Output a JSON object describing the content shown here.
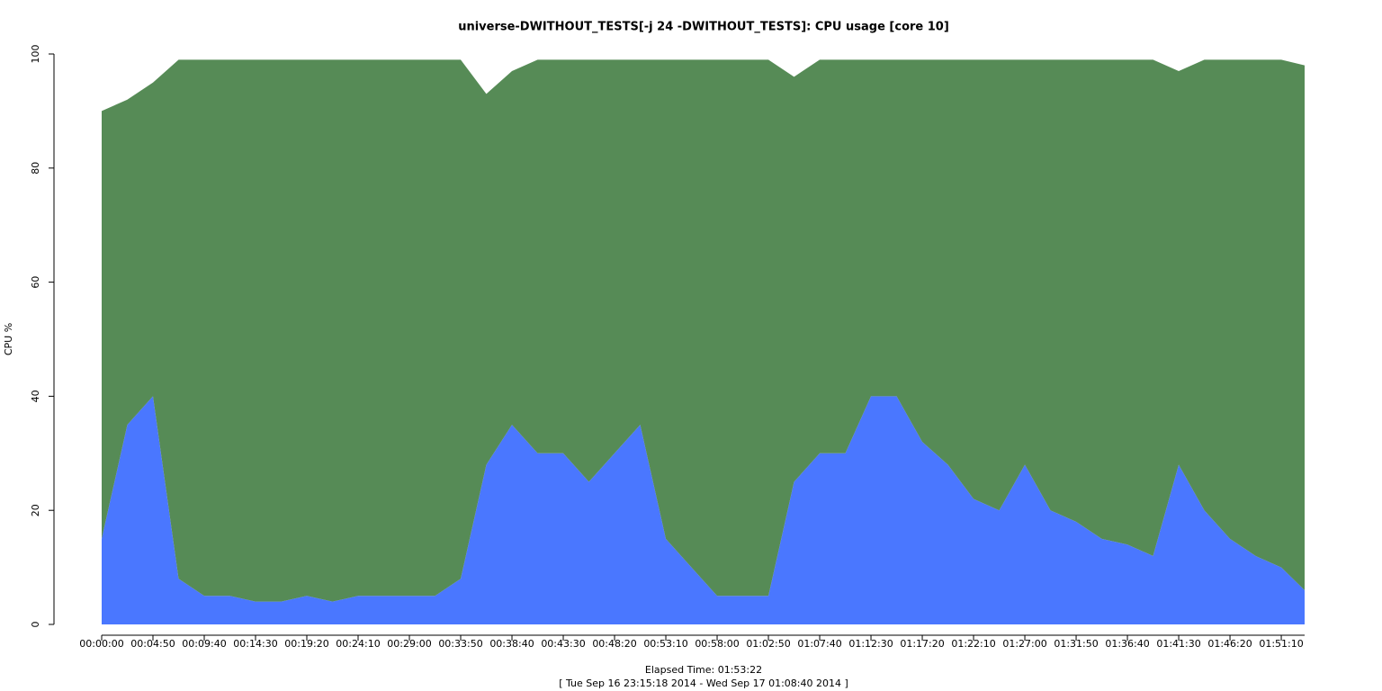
{
  "chart_data": {
    "type": "stacked-area",
    "title": "universe-DWITHOUT_TESTS[-j 24  -DWITHOUT_TESTS]: CPU usage [core 10]",
    "y_label": "CPU %",
    "x_label": "Elapsed Time: 01:53:22",
    "subtitle": "[ Tue Sep 16 23:15:18 2014 - Wed Sep 17 01:08:40 2014 ]",
    "x": [
      0,
      145,
      290,
      435,
      580,
      725,
      870,
      1015,
      1160,
      1305,
      1450,
      1595,
      1740,
      1885,
      2030,
      2175,
      2320,
      2465,
      2610,
      2755,
      2900,
      3045,
      3190,
      3335,
      3480,
      3625,
      3770,
      3915,
      4060,
      4205,
      4350,
      4495,
      4640,
      4785,
      4930,
      5075,
      5220,
      5365,
      5510,
      5655,
      5800,
      5945,
      6090,
      6235,
      6380,
      6525,
      6670,
      6802
    ],
    "series": [
      {
        "color": "#4a77ff",
        "values": [
          15,
          35,
          40,
          8,
          5,
          5,
          4,
          4,
          5,
          4,
          5,
          5,
          5,
          5,
          8,
          28,
          35,
          30,
          30,
          25,
          30,
          35,
          15,
          10,
          5,
          5,
          5,
          25,
          30,
          30,
          40,
          40,
          32,
          28,
          22,
          20,
          28,
          20,
          18,
          15,
          14,
          12,
          28,
          20,
          15,
          12,
          10,
          6
        ]
      },
      {
        "color": "#568b56",
        "values": [
          75,
          57,
          55,
          91,
          94,
          94,
          95,
          95,
          94,
          95,
          94,
          94,
          94,
          94,
          91,
          65,
          62,
          69,
          69,
          74,
          69,
          64,
          84,
          89,
          94,
          94,
          94,
          71,
          69,
          69,
          59,
          59,
          67,
          71,
          77,
          79,
          71,
          79,
          81,
          84,
          85,
          87,
          69,
          79,
          84,
          87,
          89,
          92
        ]
      }
    ],
    "xlim": [
      0,
      6802
    ],
    "ylim": [
      0,
      100
    ],
    "yticks": [
      0,
      20,
      40,
      60,
      80,
      100
    ],
    "xticks": [
      {
        "value": 0,
        "label": "00:00:00"
      },
      {
        "value": 290,
        "label": "00:04:50"
      },
      {
        "value": 580,
        "label": "00:09:40"
      },
      {
        "value": 870,
        "label": "00:14:30"
      },
      {
        "value": 1160,
        "label": "00:19:20"
      },
      {
        "value": 1450,
        "label": "00:24:10"
      },
      {
        "value": 1740,
        "label": "00:29:00"
      },
      {
        "value": 2030,
        "label": "00:33:50"
      },
      {
        "value": 2320,
        "label": "00:38:40"
      },
      {
        "value": 2610,
        "label": "00:43:30"
      },
      {
        "value": 2900,
        "label": "00:48:20"
      },
      {
        "value": 3190,
        "label": "00:53:10"
      },
      {
        "value": 3480,
        "label": "00:58:00"
      },
      {
        "value": 3770,
        "label": "01:02:50"
      },
      {
        "value": 4060,
        "label": "01:07:40"
      },
      {
        "value": 4350,
        "label": "01:12:30"
      },
      {
        "value": 4640,
        "label": "01:17:20"
      },
      {
        "value": 4930,
        "label": "01:22:10"
      },
      {
        "value": 5220,
        "label": "01:27:00"
      },
      {
        "value": 5510,
        "label": "01:31:50"
      },
      {
        "value": 5800,
        "label": "01:36:40"
      },
      {
        "value": 6090,
        "label": "01:41:30"
      },
      {
        "value": 6380,
        "label": "01:46:20"
      },
      {
        "value": 6670,
        "label": "01:51:10"
      }
    ],
    "grid": false
  }
}
